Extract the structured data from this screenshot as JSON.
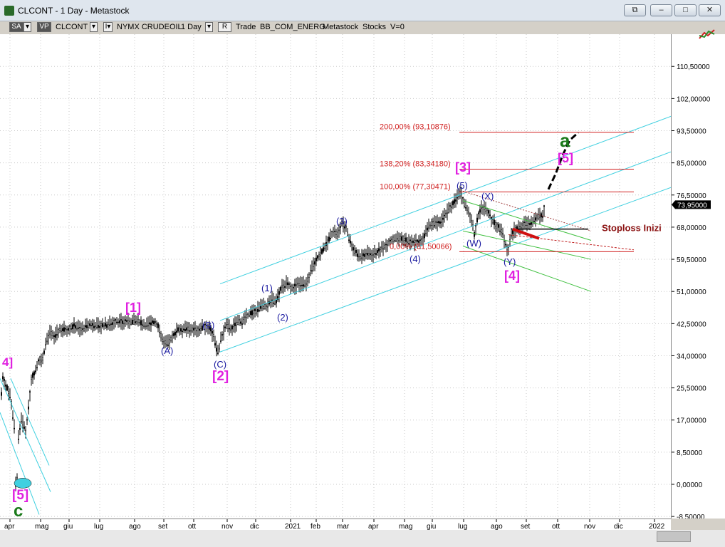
{
  "window": {
    "title": "CLCONT - 1 Day - Metastock",
    "buttons": [
      "restore-all",
      "minimize",
      "maximize",
      "close"
    ]
  },
  "toolbar": {
    "sa": "SA",
    "vp": "VP",
    "symbol": "CLCONT",
    "exchange": "NYMX CRUDEOIL",
    "period": "1 Day",
    "r": "R",
    "mode": "Trade",
    "sector": "BB_COM_ENERG",
    "source": "Metastock",
    "kind": "Stocks",
    "volume": "V=0"
  },
  "chart_data": {
    "type": "candlestick",
    "y_ticks": [
      -8.5,
      0.0,
      8.5,
      17.0,
      25.5,
      34.0,
      42.5,
      51.0,
      59.5,
      68.0,
      76.5,
      85.0,
      93.5,
      102.0,
      110.5
    ],
    "y_tick_labels": [
      "-8,50000",
      "0,00000",
      "8,50000",
      "17,00000",
      "25,50000",
      "34,00000",
      "42,50000",
      "51,00000",
      "59,50000",
      "68,00000",
      "76,50000",
      "85,00000",
      "93,50000",
      "102,00000",
      "110,50000"
    ],
    "x_tick_labels": [
      "apr",
      "mag",
      "giu",
      "lug",
      "ago",
      "set",
      "ott",
      "nov",
      "dic",
      "2021",
      "feb",
      "mar",
      "apr",
      "mag",
      "giu",
      "lug",
      "ago",
      "set",
      "ott",
      "nov",
      "dic",
      "2022"
    ],
    "last_price": "73,95000",
    "price_path": [
      [
        0,
        20
      ],
      [
        4,
        28
      ],
      [
        9,
        26
      ],
      [
        15,
        23
      ],
      [
        20,
        15
      ],
      [
        22,
        0
      ],
      [
        24,
        2
      ],
      [
        26,
        12
      ],
      [
        30,
        17
      ],
      [
        36,
        14
      ],
      [
        40,
        20
      ],
      [
        44,
        28
      ],
      [
        50,
        30
      ],
      [
        55,
        33
      ],
      [
        60,
        33
      ],
      [
        65,
        38
      ],
      [
        70,
        40
      ],
      [
        76,
        39
      ],
      [
        85,
        41
      ],
      [
        95,
        41
      ],
      [
        105,
        42
      ],
      [
        115,
        41
      ],
      [
        125,
        42
      ],
      [
        135,
        42
      ],
      [
        140,
        42
      ],
      [
        145,
        42
      ],
      [
        150,
        42
      ],
      [
        160,
        43
      ],
      [
        170,
        43
      ],
      [
        185,
        43
      ],
      [
        195,
        43
      ],
      [
        205,
        42
      ],
      [
        215,
        43
      ],
      [
        222,
        42
      ],
      [
        228,
        38
      ],
      [
        235,
        37
      ],
      [
        242,
        39
      ],
      [
        250,
        41
      ],
      [
        260,
        41
      ],
      [
        270,
        41
      ],
      [
        280,
        41
      ],
      [
        290,
        42
      ],
      [
        296,
        41
      ],
      [
        300,
        39
      ],
      [
        303,
        36
      ],
      [
        307,
        35
      ],
      [
        311,
        39
      ],
      [
        318,
        42
      ],
      [
        325,
        41
      ],
      [
        333,
        43
      ],
      [
        340,
        43
      ],
      [
        350,
        45
      ],
      [
        360,
        46
      ],
      [
        368,
        47
      ],
      [
        375,
        47
      ],
      [
        381,
        49
      ],
      [
        387,
        48
      ],
      [
        395,
        52
      ],
      [
        402,
        53
      ],
      [
        410,
        52
      ],
      [
        420,
        53
      ],
      [
        430,
        53
      ],
      [
        440,
        58
      ],
      [
        450,
        61
      ],
      [
        460,
        64
      ],
      [
        468,
        67
      ],
      [
        474,
        66
      ],
      [
        480,
        69
      ],
      [
        486,
        68
      ],
      [
        490,
        65
      ],
      [
        497,
        62
      ],
      [
        505,
        60
      ],
      [
        515,
        61
      ],
      [
        525,
        61
      ],
      [
        535,
        62
      ],
      [
        545,
        64
      ],
      [
        555,
        65
      ],
      [
        565,
        65
      ],
      [
        575,
        64
      ],
      [
        583,
        64
      ],
      [
        590,
        64
      ],
      [
        597,
        66
      ],
      [
        605,
        69
      ],
      [
        615,
        69
      ],
      [
        625,
        71
      ],
      [
        635,
        74
      ],
      [
        642,
        76
      ],
      [
        647,
        77
      ],
      [
        652,
        74
      ],
      [
        656,
        73
      ],
      [
        660,
        71
      ],
      [
        664,
        68
      ],
      [
        666,
        66
      ],
      [
        670,
        70
      ],
      [
        675,
        73
      ],
      [
        680,
        73
      ],
      [
        686,
        72
      ],
      [
        690,
        70
      ],
      [
        695,
        69
      ],
      [
        700,
        68
      ],
      [
        706,
        66
      ],
      [
        711,
        63
      ],
      [
        714,
        62
      ],
      [
        718,
        66
      ],
      [
        722,
        67
      ],
      [
        730,
        68
      ],
      [
        738,
        69
      ],
      [
        745,
        69
      ],
      [
        752,
        70
      ],
      [
        758,
        71
      ],
      [
        762,
        71
      ],
      [
        765,
        74
      ]
    ],
    "projection_points": [
      [
        770,
        78
      ],
      [
        780,
        82
      ],
      [
        790,
        87
      ],
      [
        800,
        91
      ],
      [
        812,
        93
      ]
    ],
    "fib_levels": [
      {
        "label": "200,00% (93,10876)",
        "value": 93.11
      },
      {
        "label": "138,20% (83,34180)",
        "value": 83.34
      },
      {
        "label": "100,00% (77,30471)",
        "value": 77.3
      },
      {
        "label": "0,00% (61,50066)",
        "value": 61.5
      }
    ],
    "stoploss_label": "Stoploss Inizi",
    "stoploss_value": 67.5,
    "wave_labels": [
      {
        "text": "4]",
        "color": "#e020e0"
      },
      {
        "text": "[5]",
        "color": "#e020e0"
      },
      {
        "text": "c",
        "color": "#1a7a1a"
      },
      {
        "text": "[1]",
        "color": "#e020e0"
      },
      {
        "text": "(A)",
        "color": "#1a1aa0"
      },
      {
        "text": "(B)",
        "color": "#1a1aa0"
      },
      {
        "text": "(C)",
        "color": "#1a1aa0"
      },
      {
        "text": "[2]",
        "color": "#e020e0"
      },
      {
        "text": "(1)",
        "color": "#1a1aa0"
      },
      {
        "text": "(2)",
        "color": "#1a1aa0"
      },
      {
        "text": "(3)",
        "color": "#1a1aa0"
      },
      {
        "text": "(4)",
        "color": "#1a1aa0"
      },
      {
        "text": "(5)",
        "color": "#1a1aa0"
      },
      {
        "text": "[3]",
        "color": "#e020e0"
      },
      {
        "text": "(W)",
        "color": "#1a1aa0"
      },
      {
        "text": "(X)",
        "color": "#1a1aa0"
      },
      {
        "text": "(Y)",
        "color": "#1a1aa0"
      },
      {
        "text": "[4]",
        "color": "#e020e0"
      },
      {
        "text": "[5]",
        "color": "#e020e0"
      },
      {
        "text": "a",
        "color": "#1a7a1a"
      }
    ],
    "colors": {
      "candles": "#000000",
      "channels": "#40d0e0",
      "fib": "#d02020",
      "green_lines": "#40c040",
      "projection": "#000000",
      "last_price_box": "#000000"
    }
  }
}
